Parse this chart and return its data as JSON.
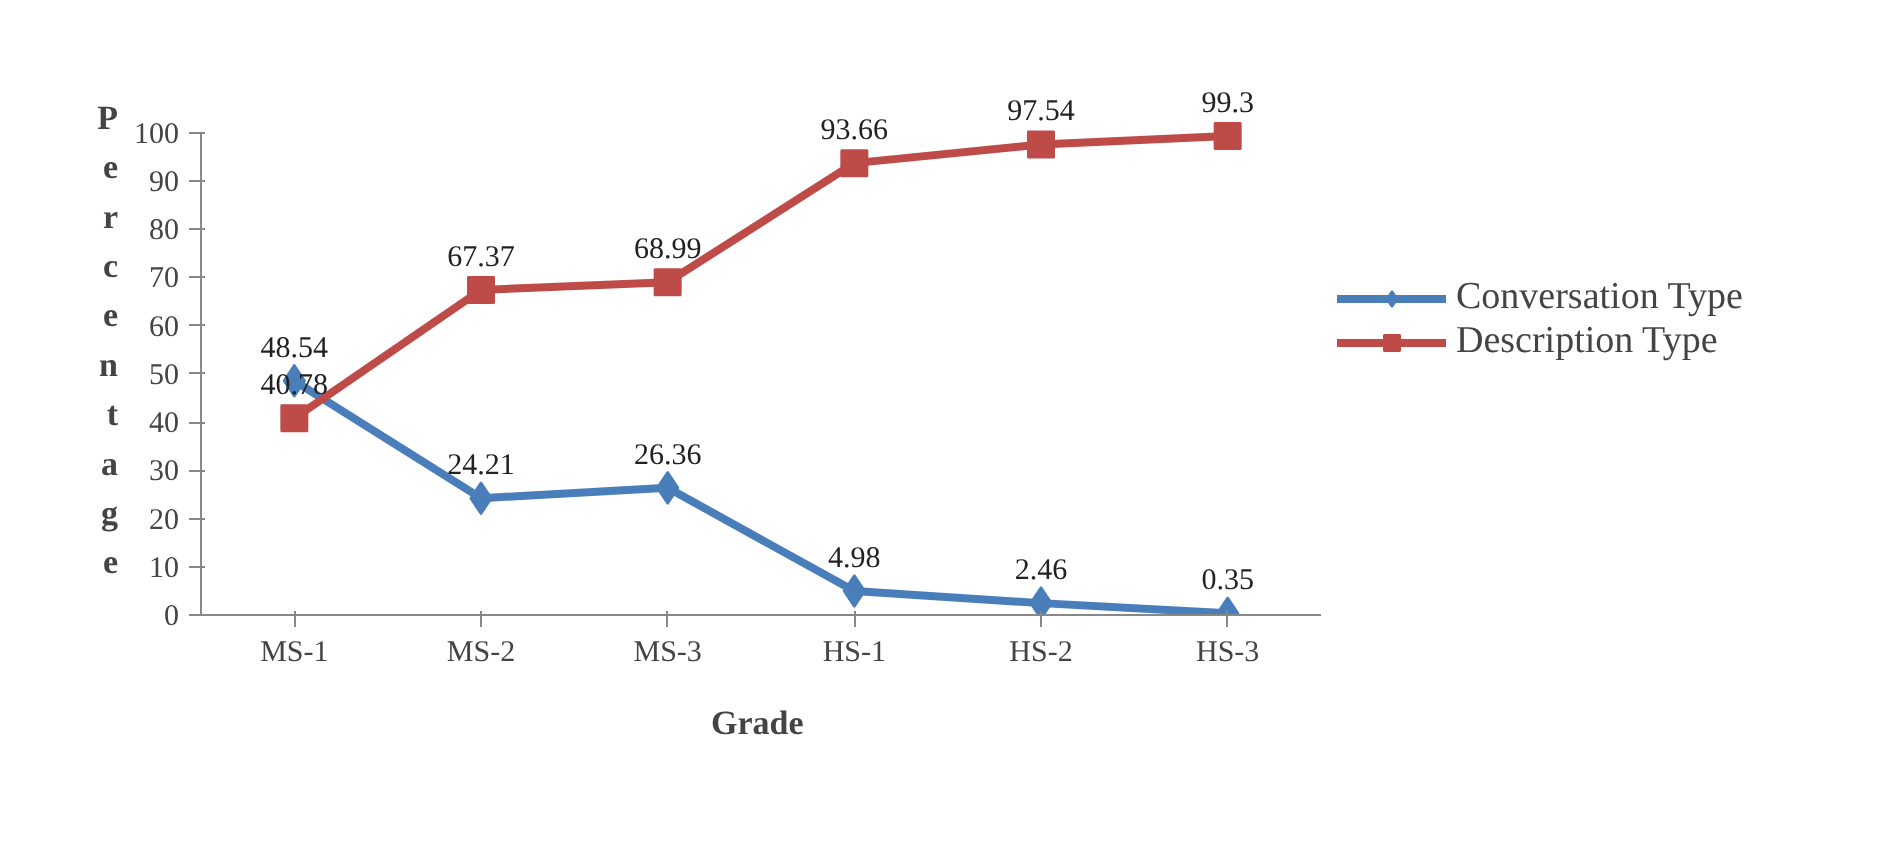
{
  "chart_data": {
    "type": "line",
    "xlabel": "Grade",
    "ylabel": "Percentage",
    "categories": [
      "MS-1",
      "MS-2",
      "MS-3",
      "HS-1",
      "HS-2",
      "HS-3"
    ],
    "series": [
      {
        "name": "Conversation Type",
        "color": "#4a7ebb",
        "marker": "diamond",
        "values": [
          48.54,
          24.21,
          26.36,
          4.98,
          2.46,
          0.35
        ]
      },
      {
        "name": "Description Type",
        "color": "#be4b48",
        "marker": "square",
        "values": [
          40.78,
          67.37,
          68.99,
          93.66,
          97.54,
          99.3
        ]
      }
    ],
    "ylim": [
      0,
      100
    ],
    "yticks": [
      0,
      10,
      20,
      30,
      40,
      50,
      60,
      70,
      80,
      90,
      100
    ],
    "grid": false,
    "legend": "right",
    "data_labels": true,
    "line_style": "solid"
  }
}
